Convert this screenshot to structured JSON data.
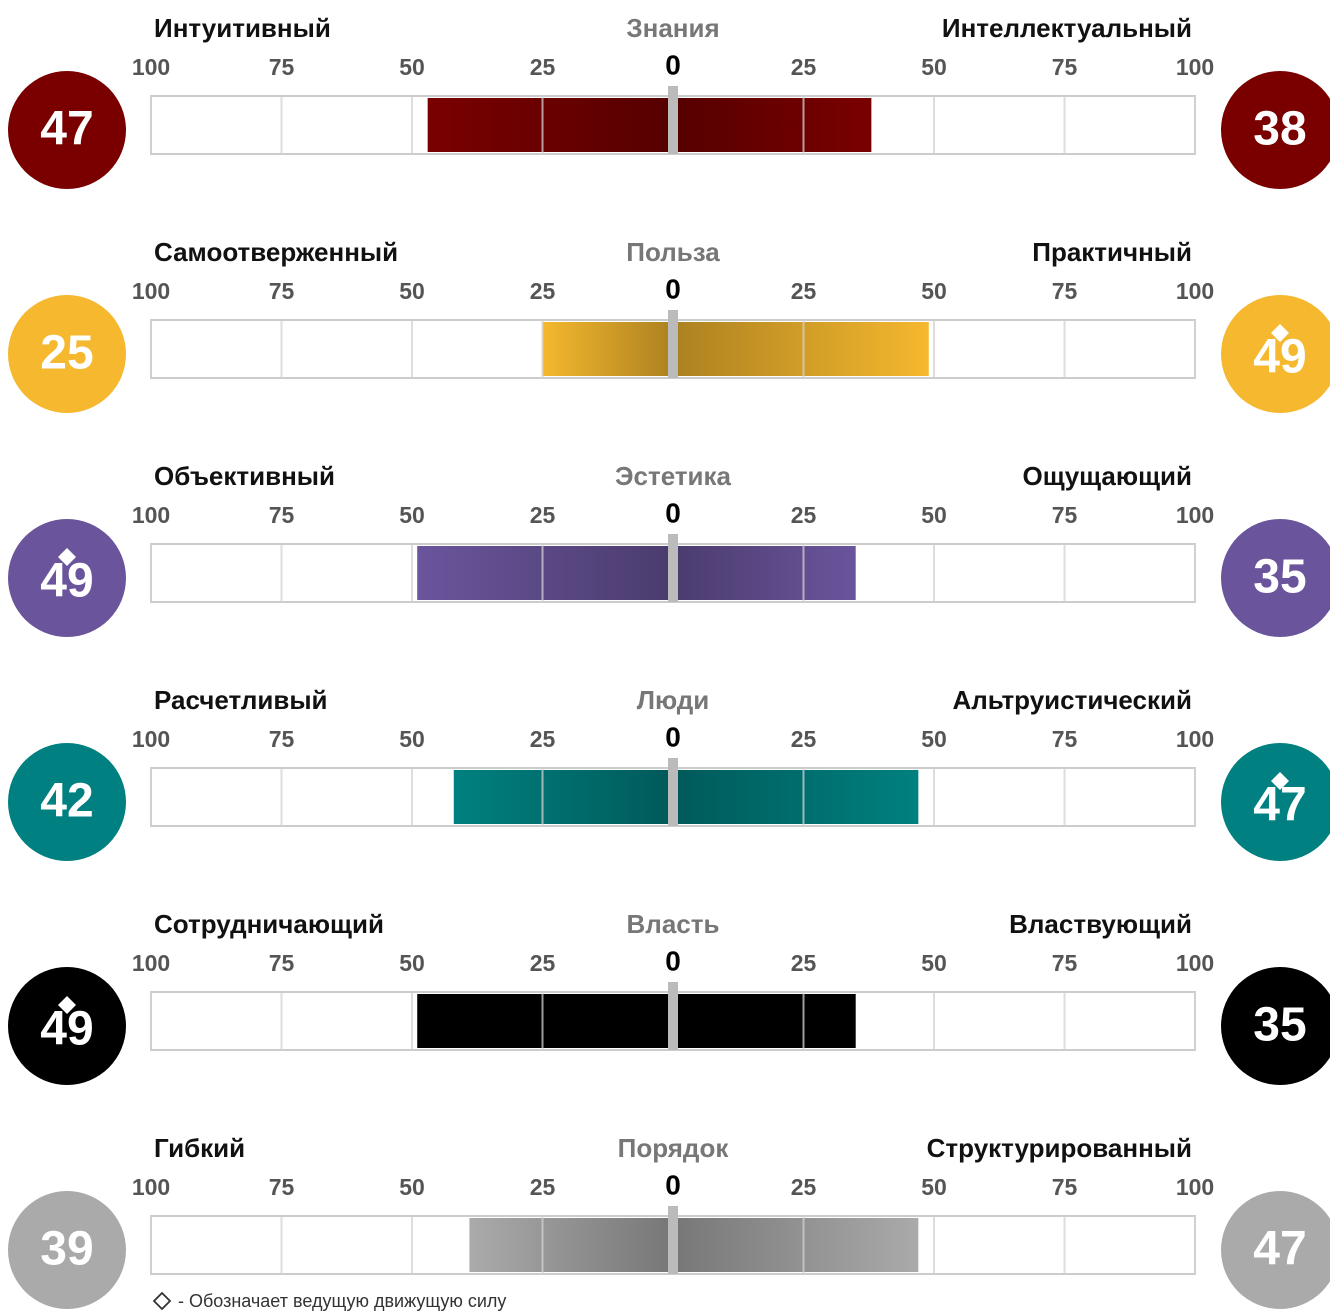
{
  "chart_data": [
    {
      "type": "diverging_bar",
      "title": "Знания",
      "left_label": "Интуитивный",
      "right_label": "Интеллектуальный",
      "left_value": 47,
      "right_value": 38,
      "color": "#7a0000",
      "driver": null,
      "xlim": [
        0,
        100
      ],
      "xticks": [
        0,
        25,
        50,
        75,
        100
      ]
    },
    {
      "type": "diverging_bar",
      "title": "Польза",
      "left_label": "Самоотверженный",
      "right_label": "Практичный",
      "left_value": 25,
      "right_value": 49,
      "color": "#f5b82e",
      "driver": "right",
      "xlim": [
        0,
        100
      ],
      "xticks": [
        0,
        25,
        50,
        75,
        100
      ]
    },
    {
      "type": "diverging_bar",
      "title": "Эстетика",
      "left_label": "Объективный",
      "right_label": "Ощущающий",
      "left_value": 49,
      "right_value": 35,
      "color": "#6a559c",
      "driver": "left",
      "xlim": [
        0,
        100
      ],
      "xticks": [
        0,
        25,
        50,
        75,
        100
      ]
    },
    {
      "type": "diverging_bar",
      "title": "Люди",
      "left_label": "Расчетливый",
      "right_label": "Альтруистический",
      "left_value": 42,
      "right_value": 47,
      "color": "#008080",
      "driver": "right",
      "xlim": [
        0,
        100
      ],
      "xticks": [
        0,
        25,
        50,
        75,
        100
      ]
    },
    {
      "type": "diverging_bar",
      "title": "Власть",
      "left_label": "Сотрудничающий",
      "right_label": "Властвующий",
      "left_value": 49,
      "right_value": 35,
      "color": "#000000",
      "driver": "left",
      "xlim": [
        0,
        100
      ],
      "xticks": [
        0,
        25,
        50,
        75,
        100
      ]
    },
    {
      "type": "diverging_bar",
      "title": "Порядок",
      "left_label": "Гибкий",
      "right_label": "Структурированный",
      "left_value": 39,
      "right_value": 47,
      "color": "#aaaaaa",
      "driver": null,
      "xlim": [
        0,
        100
      ],
      "xticks": [
        0,
        25,
        50,
        75,
        100
      ]
    }
  ],
  "footnote": "- Обозначает ведущую движущую силу"
}
